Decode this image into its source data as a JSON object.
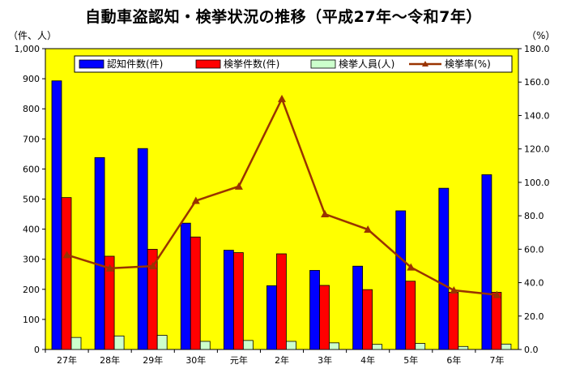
{
  "chart_data": {
    "type": "bar",
    "title": "自動車盗認知・検挙状況の推移（平成27年～令和7年）",
    "y_left_unit": "（件、人）",
    "y_right_unit": "（%）",
    "categories": [
      "27年",
      "28年",
      "29年",
      "30年",
      "元年",
      "2年",
      "3年",
      "4年",
      "5年",
      "6年",
      "7年"
    ],
    "ylim_left": [
      0,
      1000
    ],
    "yticks_left": [
      "0",
      "100",
      "200",
      "300",
      "400",
      "500",
      "600",
      "700",
      "800",
      "900",
      "1,000"
    ],
    "ylim_right": [
      0,
      180
    ],
    "yticks_right": [
      "0.0",
      "20.0",
      "40.0",
      "60.0",
      "80.0",
      "100.0",
      "120.0",
      "140.0",
      "160.0",
      "180.0"
    ],
    "series": [
      {
        "name": "認知件数(件)",
        "kind": "bar",
        "color": "#0000ff",
        "values": [
          893,
          638,
          668,
          420,
          330,
          212,
          263,
          277,
          461,
          536,
          581
        ]
      },
      {
        "name": "検挙件数(件)",
        "kind": "bar",
        "color": "#ff0000",
        "values": [
          505,
          310,
          333,
          374,
          322,
          318,
          213,
          199,
          227,
          190,
          190
        ]
      },
      {
        "name": "検挙人員(人)",
        "kind": "bar",
        "color": "#ccffcc",
        "values": [
          40,
          45,
          47,
          27,
          30,
          27,
          22,
          17,
          20,
          10,
          18
        ]
      },
      {
        "name": "検挙率(%)",
        "kind": "line",
        "axis": "right",
        "color": "#993300",
        "values": [
          56.6,
          48.6,
          49.9,
          89.0,
          97.6,
          150.0,
          81.0,
          71.8,
          49.2,
          35.4,
          32.7
        ]
      }
    ],
    "plot_background": "#ffff00",
    "legend_position": "top"
  }
}
